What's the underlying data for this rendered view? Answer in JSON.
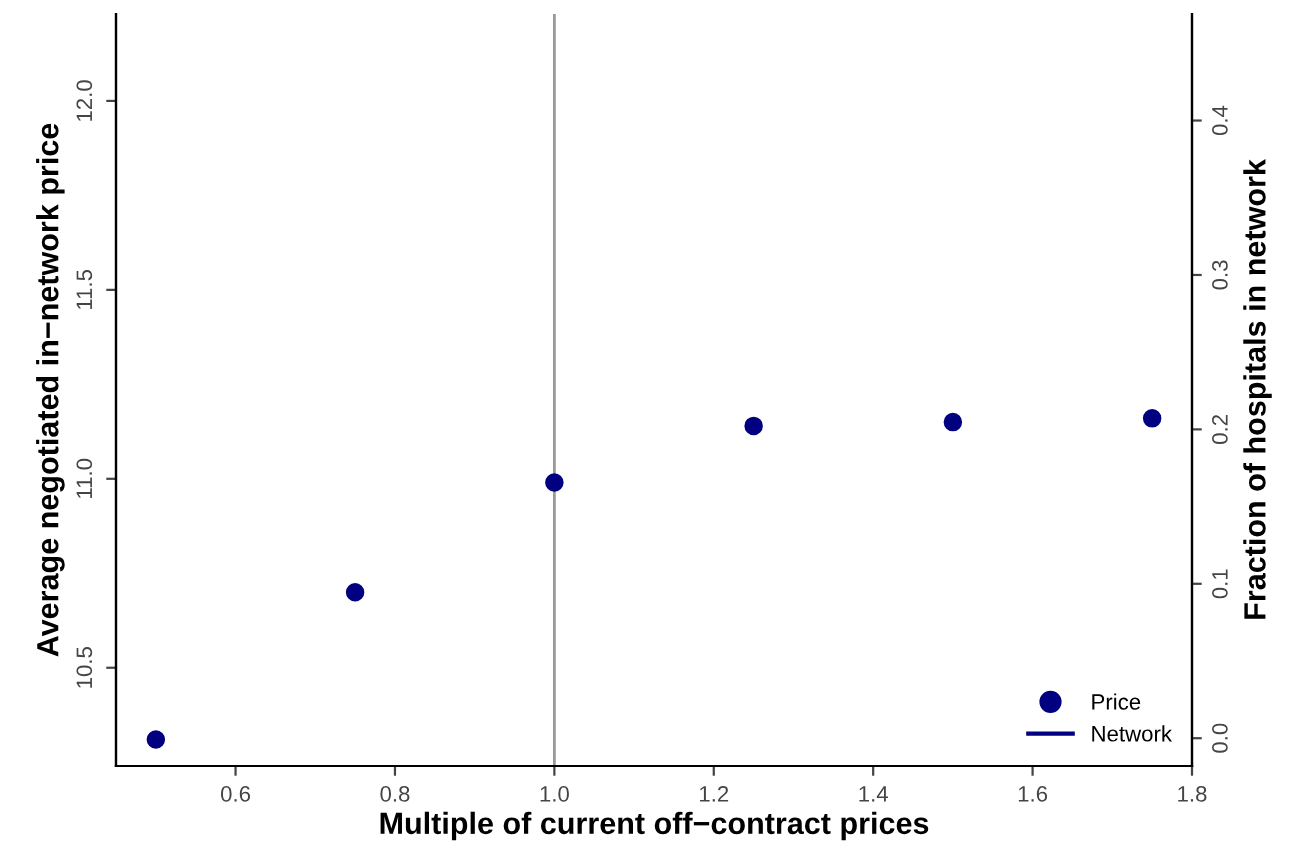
{
  "chart_data": {
    "type": "scatter",
    "xlabel": "Multiple of current off−contract prices",
    "ylabel": "Average negotiated in−network price",
    "y2label": "Fraction of hospitals in network",
    "x": [
      0.5,
      0.75,
      1.0,
      1.25,
      1.5,
      1.75
    ],
    "series": [
      {
        "name": "Price",
        "color": "#000080",
        "values": [
          10.31,
          10.7,
          10.99,
          11.14,
          11.15,
          11.16
        ],
        "marker": "circle"
      },
      {
        "name": "Network",
        "type": "line",
        "color": "#000080",
        "values": [
          null,
          null,
          null,
          null,
          null,
          null
        ]
      }
    ],
    "xlim": [
      0.45,
      1.8
    ],
    "xticks": [
      0.6,
      0.8,
      {
        "value": 1,
        "label": "1.0"
      },
      1.2,
      1.4,
      1.6,
      1.8
    ],
    "ylim": [
      10.24,
      12.23
    ],
    "yticks": [
      10.5,
      {
        "value": 11,
        "label": "11.0"
      },
      11.5,
      {
        "value": 12,
        "label": "12.0"
      }
    ],
    "y2lim": [
      -0.018,
      0.469
    ],
    "y2ticks": [
      {
        "value": 0,
        "label": "0.0"
      },
      0.1,
      0.2,
      0.3,
      0.4
    ],
    "ref_lines": [
      {
        "axis": "x",
        "value": 1.0,
        "color": "#999999"
      }
    ],
    "legend": "bottom right",
    "grid": false
  }
}
